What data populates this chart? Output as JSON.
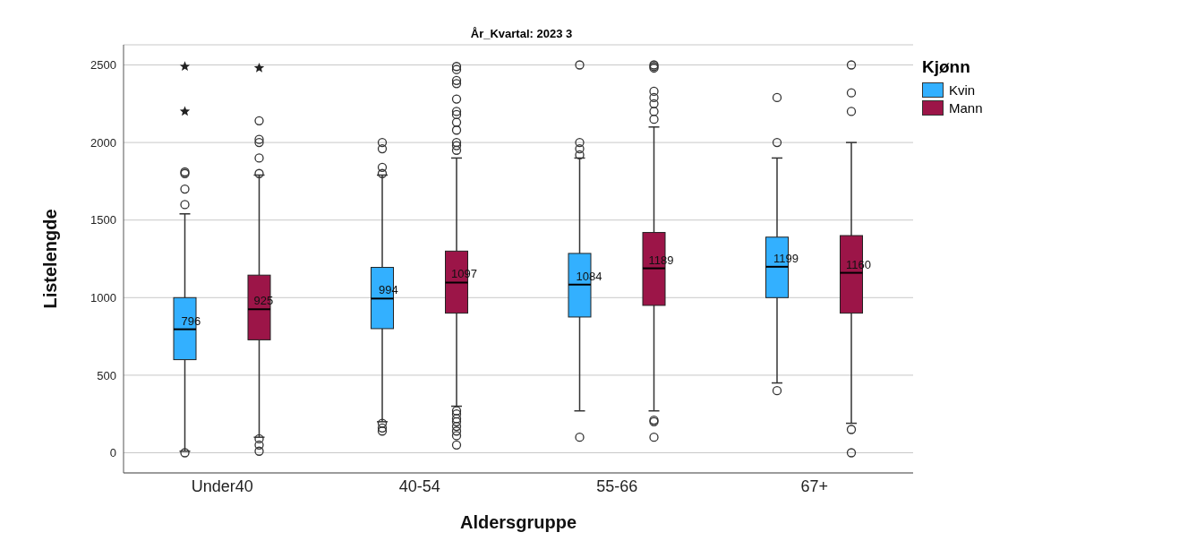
{
  "chart_data": {
    "type": "box",
    "title": "År_Kvartal: 2023 3",
    "xlabel": "Aldersgruppe",
    "ylabel": "Listelengde",
    "legend_title": "Kjønn",
    "legend": "top right",
    "grid": "y",
    "annotations": [
      "796",
      "925",
      "994",
      "1097",
      "1084",
      "1189",
      "1199",
      "1160"
    ],
    "categories": [
      "Under40",
      "40-54",
      "55-66",
      "67+"
    ],
    "ylim": [
      -130,
      2630
    ],
    "yticks": [
      0,
      500,
      1000,
      1500,
      2000,
      2500
    ],
    "series": [
      {
        "name": "Kvin",
        "color": "#33b0ff",
        "boxes": [
          {
            "low": 10,
            "q1": 600,
            "median": 796,
            "q3": 1000,
            "high": 1540,
            "outliers": [
              0,
              1600,
              1700,
              1800,
              1810,
              2200,
              2490
            ]
          },
          {
            "low": 200,
            "q1": 800,
            "median": 994,
            "q3": 1195,
            "high": 1790,
            "outliers": [
              140,
              160,
              190,
              1800,
              1840,
              1960,
              2000
            ]
          },
          {
            "low": 270,
            "q1": 875,
            "median": 1084,
            "q3": 1285,
            "high": 1900,
            "outliers": [
              100,
              1920,
              1960,
              2000,
              2500
            ]
          },
          {
            "low": 450,
            "q1": 1000,
            "median": 1199,
            "q3": 1390,
            "high": 1900,
            "outliers": [
              400,
              2000,
              2290
            ]
          }
        ]
      },
      {
        "name": "Mann",
        "color": "#9c1548",
        "boxes": [
          {
            "low": 100,
            "q1": 728,
            "median": 925,
            "q3": 1145,
            "high": 1790,
            "outliers": [
              10,
              50,
              90,
              1800,
              1900,
              2000,
              2020,
              2140,
              2480
            ]
          },
          {
            "low": 300,
            "q1": 900,
            "median": 1097,
            "q3": 1300,
            "high": 1900,
            "outliers": [
              50,
              110,
              140,
              170,
              200,
              220,
              250,
              270,
              1950,
              1980,
              2000,
              2080,
              2130,
              2180,
              2200,
              2280,
              2380,
              2400,
              2470,
              2490
            ]
          },
          {
            "low": 270,
            "q1": 950,
            "median": 1189,
            "q3": 1420,
            "high": 2100,
            "outliers": [
              100,
              200,
              210,
              2150,
              2200,
              2250,
              2290,
              2330,
              2480,
              2490,
              2500
            ]
          },
          {
            "low": 190,
            "q1": 900,
            "median": 1160,
            "q3": 1400,
            "high": 2000,
            "outliers": [
              0,
              150,
              2200,
              2320,
              2500
            ]
          }
        ]
      }
    ]
  }
}
